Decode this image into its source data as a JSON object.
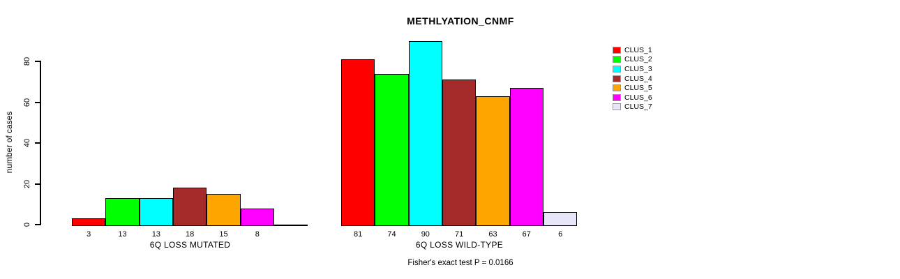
{
  "chart": {
    "title": "METHLYATION_CNMF",
    "ylabel": "number of cases",
    "footnote": "Fisher's exact test P = 0.0166",
    "background_color": "#ffffff",
    "axis_color": "#000000"
  },
  "chart_data": {
    "type": "bar",
    "title": "METHLYATION_CNMF",
    "xlabel": "",
    "ylabel": "number of cases",
    "ylim": [
      0,
      90
    ],
    "yticks": [
      0,
      20,
      40,
      60,
      80
    ],
    "grid": false,
    "legend_position": "right",
    "legend": [
      {
        "label": "CLUS_1",
        "color": "#FF0000"
      },
      {
        "label": "CLUS_2",
        "color": "#00FF00"
      },
      {
        "label": "CLUS_3",
        "color": "#00FFFF"
      },
      {
        "label": "CLUS_4",
        "color": "#A52A2A"
      },
      {
        "label": "CLUS_5",
        "color": "#FFA500"
      },
      {
        "label": "CLUS_6",
        "color": "#FF00FF"
      },
      {
        "label": "CLUS_7",
        "color": "#E6E6FA"
      }
    ],
    "groups": [
      {
        "label": "6Q LOSS MUTATED",
        "values": [
          3,
          13,
          13,
          18,
          15,
          8,
          0
        ],
        "value_labels": [
          "3",
          "13",
          "13",
          "18",
          "15",
          "8",
          ""
        ]
      },
      {
        "label": "6Q LOSS WILD-TYPE",
        "values": [
          81,
          74,
          90,
          71,
          63,
          67,
          6
        ],
        "value_labels": [
          "81",
          "74",
          "90",
          "71",
          "63",
          "67",
          "6"
        ]
      }
    ],
    "footnote": "Fisher's exact test P = 0.0166"
  }
}
